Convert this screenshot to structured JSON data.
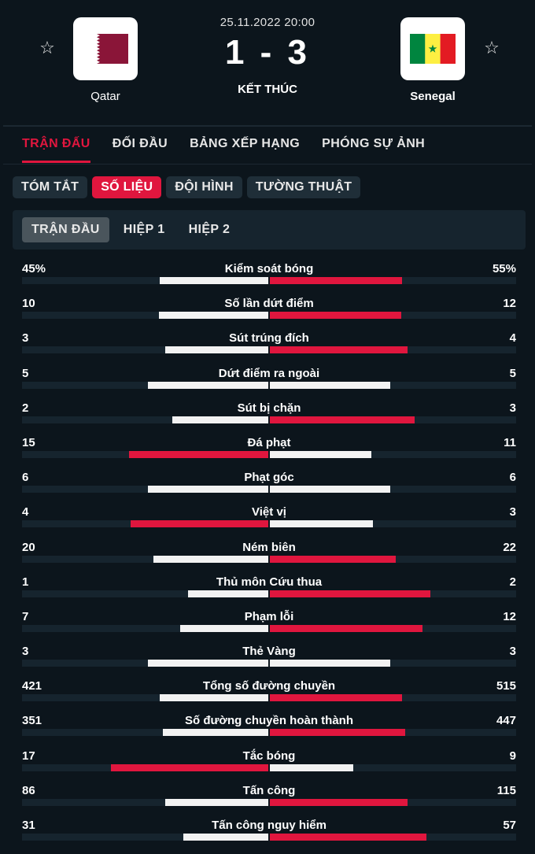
{
  "match": {
    "date": "25.11.2022 20:00",
    "score": "1 - 3",
    "status": "KẾT THÚC",
    "home": {
      "name": "Qatar",
      "flag_colors": [
        "#ffffff",
        "#8a1538"
      ]
    },
    "away": {
      "name": "Senegal",
      "flag_colors": [
        "#00853f",
        "#fdef42",
        "#e31b23"
      ]
    },
    "star_icon": "☆"
  },
  "main_tabs": [
    {
      "label": "TRẬN ĐẤU",
      "active": true
    },
    {
      "label": "ĐỐI ĐẦU",
      "active": false
    },
    {
      "label": "BẢNG XẾP HẠNG",
      "active": false
    },
    {
      "label": "PHÓNG SỰ ẢNH",
      "active": false
    }
  ],
  "sub_tabs": [
    {
      "label": "TÓM TẮT",
      "active": false
    },
    {
      "label": "SỐ LIỆU",
      "active": true
    },
    {
      "label": "ĐỘI HÌNH",
      "active": false
    },
    {
      "label": "TƯỜNG THUẬT",
      "active": false
    }
  ],
  "period_tabs": [
    {
      "label": "TRẬN ĐẦU",
      "active": true
    },
    {
      "label": "HIỆP 1",
      "active": false
    },
    {
      "label": "HIỆP 2",
      "active": false
    }
  ],
  "colors": {
    "accent": "#e0163e",
    "neutral_bar": "#f2f2f2"
  },
  "stats": [
    {
      "label": "Kiểm soát bóng",
      "home": "45%",
      "away": "55%",
      "home_value": 45,
      "away_value": 55
    },
    {
      "label": "Số lần dứt điểm",
      "home": "10",
      "away": "12",
      "home_value": 10,
      "away_value": 12
    },
    {
      "label": "Sút trúng đích",
      "home": "3",
      "away": "4",
      "home_value": 3,
      "away_value": 4
    },
    {
      "label": "Dứt điểm ra ngoài",
      "home": "5",
      "away": "5",
      "home_value": 5,
      "away_value": 5
    },
    {
      "label": "Sút bị chặn",
      "home": "2",
      "away": "3",
      "home_value": 2,
      "away_value": 3
    },
    {
      "label": "Đá phạt",
      "home": "15",
      "away": "11",
      "home_value": 15,
      "away_value": 11
    },
    {
      "label": "Phạt góc",
      "home": "6",
      "away": "6",
      "home_value": 6,
      "away_value": 6
    },
    {
      "label": "Việt vị",
      "home": "4",
      "away": "3",
      "home_value": 4,
      "away_value": 3
    },
    {
      "label": "Ném biên",
      "home": "20",
      "away": "22",
      "home_value": 20,
      "away_value": 22
    },
    {
      "label": "Thủ môn Cứu thua",
      "home": "1",
      "away": "2",
      "home_value": 1,
      "away_value": 2
    },
    {
      "label": "Phạm lỗi",
      "home": "7",
      "away": "12",
      "home_value": 7,
      "away_value": 12
    },
    {
      "label": "Thẻ Vàng",
      "home": "3",
      "away": "3",
      "home_value": 3,
      "away_value": 3
    },
    {
      "label": "Tổng số đường chuyền",
      "home": "421",
      "away": "515",
      "home_value": 421,
      "away_value": 515
    },
    {
      "label": "Số đường chuyền hoàn thành",
      "home": "351",
      "away": "447",
      "home_value": 351,
      "away_value": 447
    },
    {
      "label": "Tắc bóng",
      "home": "17",
      "away": "9",
      "home_value": 17,
      "away_value": 9
    },
    {
      "label": "Tấn công",
      "home": "86",
      "away": "115",
      "home_value": 86,
      "away_value": 115
    },
    {
      "label": "Tấn công nguy hiểm",
      "home": "31",
      "away": "57",
      "home_value": 31,
      "away_value": 57
    }
  ]
}
